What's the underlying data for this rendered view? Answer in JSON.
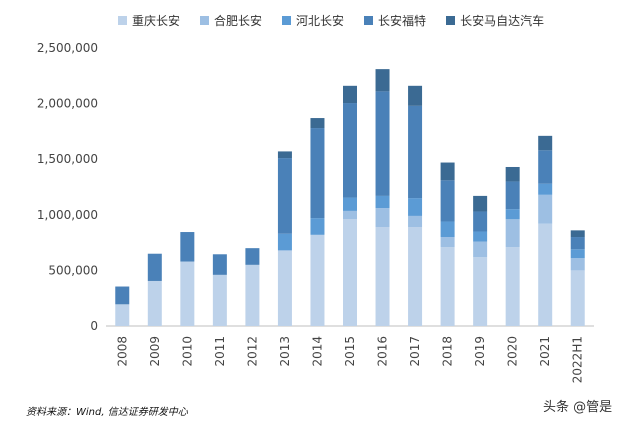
{
  "chart_data": {
    "type": "bar",
    "stacked": true,
    "categories": [
      "2008",
      "2009",
      "2010",
      "2011",
      "2012",
      "2013",
      "2014",
      "2015",
      "2016",
      "2017",
      "2018",
      "2019",
      "2020",
      "2021",
      "2022H1"
    ],
    "ylim": [
      0,
      2500000
    ],
    "yticks": [
      0,
      500000,
      1000000,
      1500000,
      2000000,
      2500000
    ],
    "ytick_labels": [
      "0",
      "500,000",
      "1,000,000",
      "1,500,000",
      "2,000,000",
      "2,500,000"
    ],
    "grid": false,
    "legend_position": "top",
    "series": [
      {
        "name": "重庆长安",
        "color": "#bdd2ea",
        "values": [
          195000,
          405000,
          580000,
          460000,
          550000,
          680000,
          820000,
          960000,
          890000,
          890000,
          710000,
          620000,
          710000,
          920000,
          500000
        ]
      },
      {
        "name": "合肥长安",
        "color": "#9dbfe3",
        "values": [
          0,
          0,
          0,
          0,
          0,
          0,
          0,
          75000,
          170000,
          100000,
          90000,
          140000,
          250000,
          260000,
          110000
        ]
      },
      {
        "name": "河北长安",
        "color": "#5b9bd5",
        "values": [
          0,
          0,
          0,
          0,
          0,
          150000,
          150000,
          120000,
          110000,
          160000,
          140000,
          90000,
          90000,
          100000,
          80000
        ]
      },
      {
        "name": "长安福特",
        "color": "#4a81b8",
        "values": [
          160000,
          245000,
          265000,
          185000,
          150000,
          680000,
          810000,
          850000,
          940000,
          830000,
          370000,
          180000,
          250000,
          300000,
          110000
        ]
      },
      {
        "name": "长安马自达汽车",
        "color": "#3b6a93",
        "values": [
          0,
          0,
          0,
          0,
          0,
          60000,
          90000,
          155000,
          200000,
          180000,
          160000,
          140000,
          130000,
          130000,
          60000
        ]
      }
    ]
  },
  "source": "资料来源：Wind, 信达证券研发中心",
  "watermark": "头条 @管是"
}
